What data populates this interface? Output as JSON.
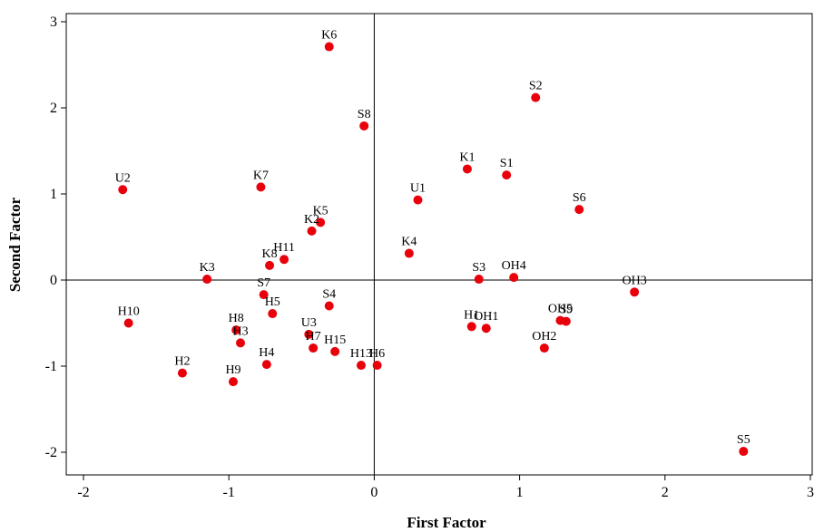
{
  "chart_data": {
    "type": "scatter",
    "xlabel": "First Factor",
    "ylabel": "Second Factor",
    "xlim": [
      -2,
      3
    ],
    "ylim": [
      -2,
      3
    ],
    "xticks": [
      "-2",
      "-1",
      "0",
      "1",
      "2",
      "3"
    ],
    "yticks": [
      "-2",
      "-1",
      "0",
      "1",
      "2",
      "3"
    ],
    "grid": false,
    "reference_lines": {
      "x": 0,
      "y": 0
    },
    "point_color": "#e8000b",
    "points": [
      {
        "label": "K6",
        "x": -0.31,
        "y": 2.71
      },
      {
        "label": "S2",
        "x": 1.11,
        "y": 2.12
      },
      {
        "label": "S8",
        "x": -0.07,
        "y": 1.79
      },
      {
        "label": "K1",
        "x": 0.64,
        "y": 1.29
      },
      {
        "label": "S1",
        "x": 0.91,
        "y": 1.22
      },
      {
        "label": "U2",
        "x": -1.73,
        "y": 1.05
      },
      {
        "label": "K7",
        "x": -0.78,
        "y": 1.08
      },
      {
        "label": "U1",
        "x": 0.3,
        "y": 0.93
      },
      {
        "label": "S6",
        "x": 1.41,
        "y": 0.82
      },
      {
        "label": "K5",
        "x": -0.37,
        "y": 0.67
      },
      {
        "label": "K2",
        "x": -0.43,
        "y": 0.57
      },
      {
        "label": "H11",
        "x": -0.62,
        "y": 0.24
      },
      {
        "label": "K4",
        "x": 0.24,
        "y": 0.31
      },
      {
        "label": "K8",
        "x": -0.72,
        "y": 0.17
      },
      {
        "label": "K3",
        "x": -1.15,
        "y": 0.01
      },
      {
        "label": "S3",
        "x": 0.72,
        "y": 0.01
      },
      {
        "label": "OH4",
        "x": 0.96,
        "y": 0.03
      },
      {
        "label": "OH3",
        "x": 1.79,
        "y": -0.14
      },
      {
        "label": "S7",
        "x": -0.76,
        "y": -0.17
      },
      {
        "label": "H5",
        "x": -0.7,
        "y": -0.39
      },
      {
        "label": "S4",
        "x": -0.31,
        "y": -0.3
      },
      {
        "label": "H10",
        "x": -1.69,
        "y": -0.5
      },
      {
        "label": "H8",
        "x": -0.95,
        "y": -0.58
      },
      {
        "label": "H3",
        "x": -0.92,
        "y": -0.73
      },
      {
        "label": "U3",
        "x": -0.45,
        "y": -0.63
      },
      {
        "label": "H7",
        "x": -0.42,
        "y": -0.79
      },
      {
        "label": "H15",
        "x": -0.27,
        "y": -0.83
      },
      {
        "label": "H1",
        "x": 0.67,
        "y": -0.54
      },
      {
        "label": "OH1",
        "x": 0.77,
        "y": -0.56
      },
      {
        "label": "OH5",
        "x": 1.28,
        "y": -0.47
      },
      {
        "label": "S9",
        "x": 1.32,
        "y": -0.48
      },
      {
        "label": "OH2",
        "x": 1.17,
        "y": -0.79
      },
      {
        "label": "H2",
        "x": -1.32,
        "y": -1.08
      },
      {
        "label": "H4",
        "x": -0.74,
        "y": -0.98
      },
      {
        "label": "H9",
        "x": -0.97,
        "y": -1.18
      },
      {
        "label": "H13",
        "x": -0.09,
        "y": -0.99
      },
      {
        "label": "H6",
        "x": 0.02,
        "y": -0.99
      },
      {
        "label": "S5",
        "x": 2.54,
        "y": -1.99
      }
    ]
  }
}
